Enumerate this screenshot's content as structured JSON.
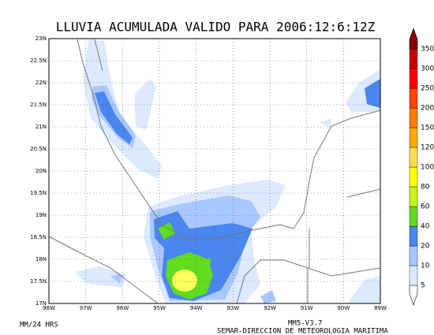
{
  "title": "LLUVIA ACUMULADA VALIDO PARA 2006:12:6:12Z",
  "lat_labels": [
    "17N",
    "17.5N",
    "18N",
    "18.5N",
    "19N",
    "19.5N",
    "20N",
    "20.5N",
    "21N",
    "21.5N",
    "22N",
    "22.5N",
    "23N"
  ],
  "lon_labels": [
    "98W",
    "97W",
    "96W",
    "95W",
    "94W",
    "93W",
    "92W",
    "91W",
    "90W",
    "89W"
  ],
  "colorbar": {
    "levels": [
      5,
      10,
      20,
      40,
      60,
      80,
      100,
      120,
      150,
      200,
      250,
      300,
      350
    ],
    "colors": [
      "#dce9ff",
      "#a9c8ff",
      "#4a86ee",
      "#62dc1e",
      "#c6f51a",
      "#ffff00",
      "#ffdc50",
      "#ffaa00",
      "#ff7a00",
      "#ff4400",
      "#ff0000",
      "#c80000",
      "#8a0000"
    ]
  },
  "footer": {
    "units": "MM/24 HRS",
    "model": "MM5-V3.7",
    "credit": "SEMAR-DIRECCION DE METEOROLOGIA MARITIMA"
  }
}
